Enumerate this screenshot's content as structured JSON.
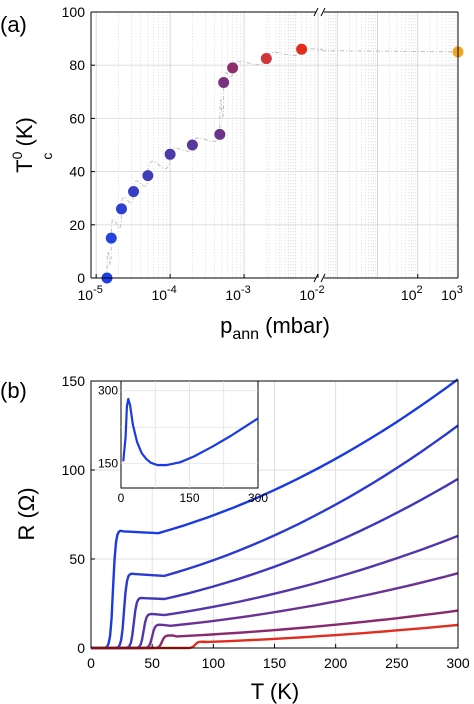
{
  "chart_data": [
    {
      "type": "scatter",
      "panel_label": "(a)",
      "ylabel": "T",
      "ylabel_sup": "0",
      "ylabel_sub": "c",
      "ylabel_unit": " (K)",
      "xlabel": "p",
      "xlabel_sub": "ann",
      "xlabel_unit": " (mbar)",
      "x_scale": "log, broken axis (break between 10^-2 and 10^0)",
      "ylim": [
        0,
        100
      ],
      "grid": true,
      "y_ticks": [
        "0",
        "20",
        "40",
        "60",
        "80",
        "100"
      ],
      "x_ticks": [
        {
          "base": "10",
          "exp": "-5"
        },
        {
          "base": "10",
          "exp": "-4"
        },
        {
          "base": "10",
          "exp": "-3"
        },
        {
          "base": "10",
          "exp": "-2"
        },
        {
          "base": "10",
          "exp": "2"
        },
        {
          "base": "10",
          "exp": "3"
        }
      ],
      "points": [
        {
          "x": 1.4e-05,
          "y": 0,
          "color": "#1f3fe0"
        },
        {
          "x": 1.6e-05,
          "y": 15,
          "color": "#2442dc"
        },
        {
          "x": 2.2e-05,
          "y": 26,
          "color": "#2d40d2"
        },
        {
          "x": 3.2e-05,
          "y": 32.5,
          "color": "#363fc6"
        },
        {
          "x": 5e-05,
          "y": 38.5,
          "color": "#413cb8"
        },
        {
          "x": 0.0001,
          "y": 46.5,
          "color": "#4d3aa8"
        },
        {
          "x": 0.0002,
          "y": 50,
          "color": "#58389a"
        },
        {
          "x": 0.00047,
          "y": 54,
          "color": "#6a348a"
        },
        {
          "x": 0.00053,
          "y": 73.5,
          "color": "#7a317e"
        },
        {
          "x": 0.0007,
          "y": 79,
          "color": "#8e2c6c"
        },
        {
          "x": 0.002,
          "y": 82.5,
          "color": "#d0363a"
        },
        {
          "x": 0.006,
          "y": 86,
          "color": "#e42c1e"
        },
        {
          "x": 1000,
          "y": 85,
          "color": "#f0a623"
        }
      ]
    },
    {
      "type": "line",
      "panel_label": "(b)",
      "xlabel": "T (K)",
      "ylabel": "R (Ω)",
      "xlim": [
        0,
        300
      ],
      "ylim": [
        0,
        150
      ],
      "x_ticks": [
        "0",
        "50",
        "100",
        "150",
        "200",
        "250",
        "300"
      ],
      "y_ticks": [
        "0",
        "50",
        "100",
        "150"
      ],
      "grid": true,
      "series": [
        {
          "color": "#1a3be0",
          "tc": 18,
          "plateau": 65.5,
          "dip_T": 55,
          "dip_R": 64.5,
          "end_R": 151
        },
        {
          "color": "#2b3ad0",
          "tc": 27,
          "plateau": 41.5,
          "dip_T": 60,
          "dip_R": 40.5,
          "end_R": 125
        },
        {
          "color": "#3e37bd",
          "tc": 35,
          "plateau": 28,
          "dip_T": 60,
          "dip_R": 27.5,
          "end_R": 95
        },
        {
          "color": "#5535aa",
          "tc": 43,
          "plateau": 19,
          "dip_T": 60,
          "dip_R": 18.5,
          "end_R": 63
        },
        {
          "color": "#6b3296",
          "tc": 50,
          "plateau": 13,
          "dip_T": 65,
          "dip_R": 12.5,
          "end_R": 42
        },
        {
          "color": "#8a2a6e",
          "tc": 58,
          "plateau": 7,
          "dip_T": 70,
          "dip_R": 6.5,
          "end_R": 21
        },
        {
          "color": "#e02e1e",
          "tc": 85,
          "plateau": 3.5,
          "dip_T": 92,
          "dip_R": 3.3,
          "end_R": 13
        }
      ],
      "inset": {
        "xlim": [
          0,
          300
        ],
        "ylim": [
          100,
          320
        ],
        "x_ticks": [
          "0",
          "150",
          "300"
        ],
        "y_ticks": [
          "150",
          "300"
        ],
        "color": "#1a3be0",
        "points": [
          [
            5,
            155
          ],
          [
            10,
            205
          ],
          [
            13,
            268
          ],
          [
            16,
            283
          ],
          [
            20,
            270
          ],
          [
            26,
            230
          ],
          [
            35,
            195
          ],
          [
            45,
            172
          ],
          [
            55,
            160
          ],
          [
            65,
            152
          ],
          [
            80,
            147
          ],
          [
            100,
            147
          ],
          [
            130,
            153
          ],
          [
            160,
            165
          ],
          [
            200,
            185
          ],
          [
            240,
            207
          ],
          [
            270,
            225
          ],
          [
            300,
            243
          ]
        ]
      }
    }
  ]
}
